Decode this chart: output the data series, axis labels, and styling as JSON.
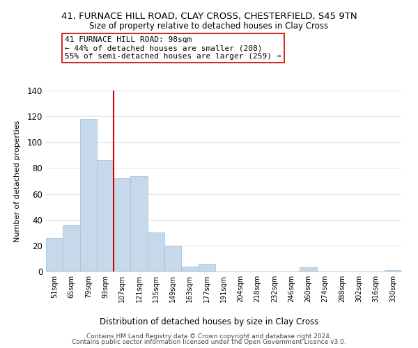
{
  "title": "41, FURNACE HILL ROAD, CLAY CROSS, CHESTERFIELD, S45 9TN",
  "subtitle": "Size of property relative to detached houses in Clay Cross",
  "xlabel": "Distribution of detached houses by size in Clay Cross",
  "ylabel": "Number of detached properties",
  "bar_labels": [
    "51sqm",
    "65sqm",
    "79sqm",
    "93sqm",
    "107sqm",
    "121sqm",
    "135sqm",
    "149sqm",
    "163sqm",
    "177sqm",
    "191sqm",
    "204sqm",
    "218sqm",
    "232sqm",
    "246sqm",
    "260sqm",
    "274sqm",
    "288sqm",
    "302sqm",
    "316sqm",
    "330sqm"
  ],
  "bar_heights": [
    26,
    36,
    118,
    86,
    72,
    74,
    30,
    20,
    4,
    6,
    0,
    0,
    0,
    0,
    0,
    3,
    0,
    0,
    0,
    0,
    1
  ],
  "bar_color": "#c5d9ea",
  "bar_edge_color": "#a0bcd4",
  "vline_x": 3.5,
  "vline_color": "#cc0000",
  "annotation_title": "41 FURNACE HILL ROAD: 98sqm",
  "annotation_line1": "← 44% of detached houses are smaller (208)",
  "annotation_line2": "55% of semi-detached houses are larger (259) →",
  "annotation_box_color": "#ffffff",
  "annotation_box_edge": "#cc0000",
  "ylim": [
    0,
    140
  ],
  "yticks": [
    0,
    20,
    40,
    60,
    80,
    100,
    120,
    140
  ],
  "footer_line1": "Contains HM Land Registry data © Crown copyright and database right 2024.",
  "footer_line2": "Contains public sector information licensed under the Open Government Licence v3.0.",
  "background_color": "#ffffff",
  "grid_color": "#dde8f0"
}
